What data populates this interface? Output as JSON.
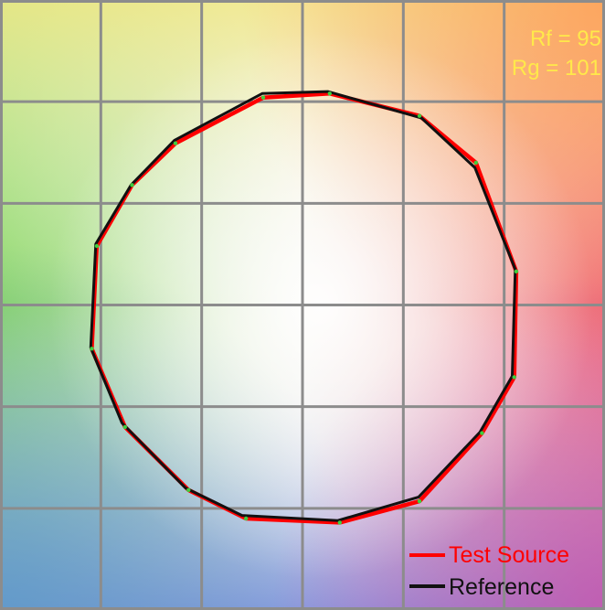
{
  "chart_data": {
    "type": "line",
    "title": "",
    "xlabel": "",
    "ylabel": "",
    "grid": true,
    "xlim": [
      0,
      6
    ],
    "ylim": [
      0,
      6
    ],
    "legend_placement": "bottom-right",
    "metrics": {
      "rf_label": "Rf = 95",
      "rg_label": "Rg = 101",
      "color": "#ffe94a"
    },
    "series": [
      {
        "name": "Test Source",
        "color": "#ff0000",
        "points": [
          [
            3.27,
            5.08
          ],
          [
            4.16,
            4.86
          ],
          [
            4.72,
            4.4
          ],
          [
            5.12,
            3.33
          ],
          [
            5.1,
            2.29
          ],
          [
            4.78,
            1.74
          ],
          [
            4.16,
            1.07
          ],
          [
            3.37,
            0.86
          ],
          [
            2.44,
            0.9
          ],
          [
            1.87,
            1.18
          ],
          [
            1.24,
            1.8
          ],
          [
            0.91,
            2.57
          ],
          [
            0.96,
            3.58
          ],
          [
            1.31,
            4.18
          ],
          [
            1.74,
            4.59
          ],
          [
            2.61,
            5.04
          ]
        ]
      },
      {
        "name": "Reference",
        "color": "#111111",
        "points": [
          [
            3.25,
            5.1
          ],
          [
            4.18,
            4.84
          ],
          [
            4.71,
            4.35
          ],
          [
            5.11,
            3.35
          ],
          [
            5.08,
            2.3
          ],
          [
            4.76,
            1.75
          ],
          [
            4.15,
            1.11
          ],
          [
            3.35,
            0.88
          ],
          [
            2.4,
            0.93
          ],
          [
            1.84,
            1.2
          ],
          [
            1.21,
            1.84
          ],
          [
            0.9,
            2.58
          ],
          [
            0.95,
            3.6
          ],
          [
            1.3,
            4.18
          ],
          [
            1.73,
            4.62
          ],
          [
            2.6,
            5.08
          ]
        ]
      }
    ]
  }
}
